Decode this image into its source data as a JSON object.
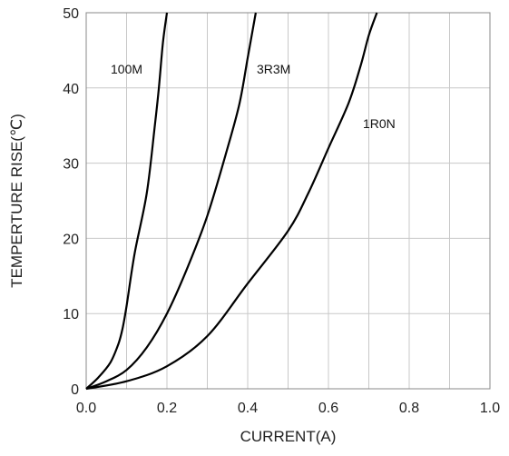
{
  "chart_data": {
    "type": "line",
    "title": "",
    "xlabel": "CURRENT(A)",
    "ylabel": "TEMPERTURE RISE(℃)",
    "xlim": [
      0.0,
      1.0
    ],
    "ylim": [
      0,
      50
    ],
    "x_ticks": [
      "0.0",
      "0.2",
      "0.4",
      "0.6",
      "0.8",
      "1.0"
    ],
    "y_ticks": [
      "0",
      "10",
      "20",
      "30",
      "40",
      "50"
    ],
    "grid": true,
    "series": [
      {
        "name": "100M",
        "x": [
          0.0,
          0.03,
          0.06,
          0.08,
          0.09,
          0.1,
          0.12,
          0.15,
          0.17,
          0.18,
          0.19,
          0.2
        ],
        "y": [
          0,
          1.5,
          3.5,
          6,
          8,
          11,
          18,
          26,
          35,
          40,
          46,
          50
        ]
      },
      {
        "name": "3R3M",
        "x": [
          0.0,
          0.05,
          0.1,
          0.15,
          0.2,
          0.25,
          0.3,
          0.35,
          0.38,
          0.4,
          0.42
        ],
        "y": [
          0,
          1,
          2.5,
          5.5,
          10,
          16,
          23,
          32,
          38,
          44,
          50
        ]
      },
      {
        "name": "1R0N",
        "x": [
          0.0,
          0.1,
          0.2,
          0.3,
          0.4,
          0.5,
          0.55,
          0.6,
          0.65,
          0.68,
          0.7,
          0.72
        ],
        "y": [
          0,
          1,
          3,
          7,
          14,
          21,
          26,
          32,
          38,
          43,
          47,
          50
        ]
      }
    ],
    "colors": {
      "line": "#000000",
      "grid": "#c8c8c8",
      "frame": "#888888"
    }
  }
}
